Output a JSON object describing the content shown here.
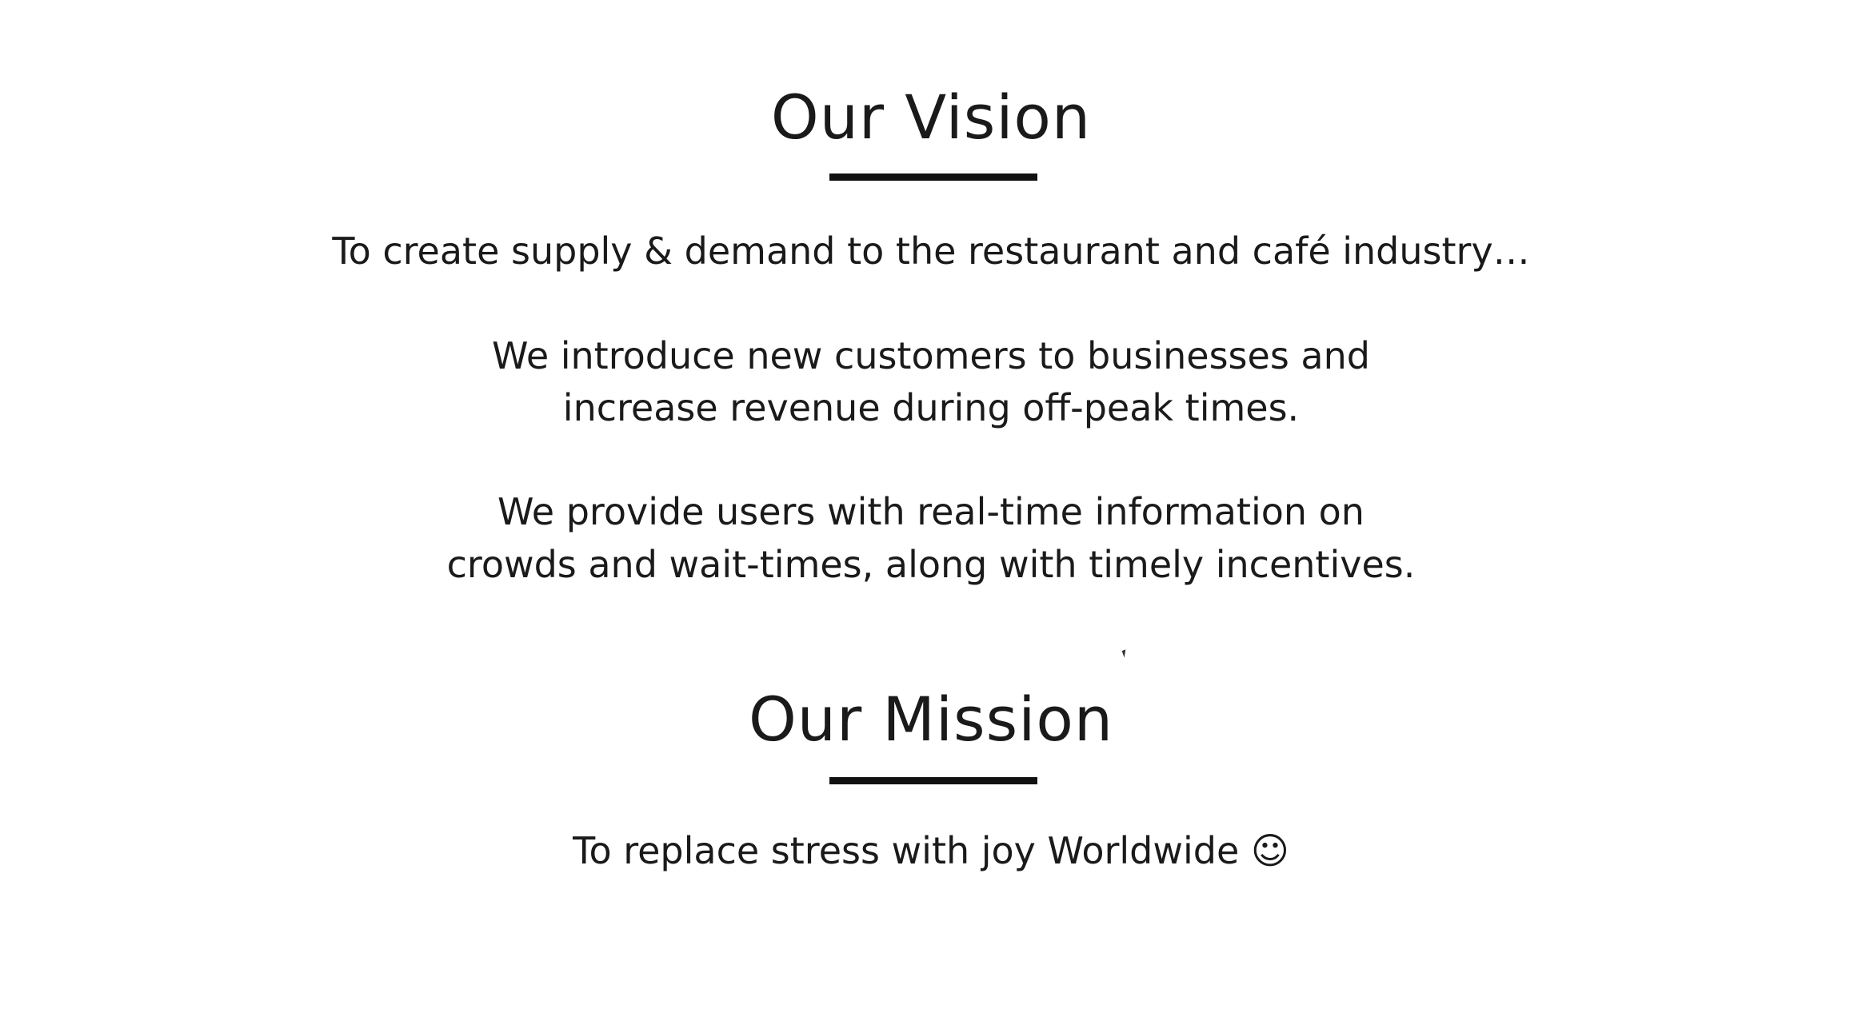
{
  "vision": {
    "title": "Our Vision",
    "line1": "To create supply & demand to the restaurant and café industry…",
    "line2a": "We introduce new customers to businesses and",
    "line2b": "increase revenue during off-peak times.",
    "line3a": "We provide users with real-time information on",
    "line3b": "crowds and wait-times, along with timely incentives."
  },
  "mission": {
    "title": "Our Mission",
    "text": "To replace stress with joy Worldwide ☺"
  },
  "icons": {
    "cursor": "mouse-pointer-icon"
  }
}
